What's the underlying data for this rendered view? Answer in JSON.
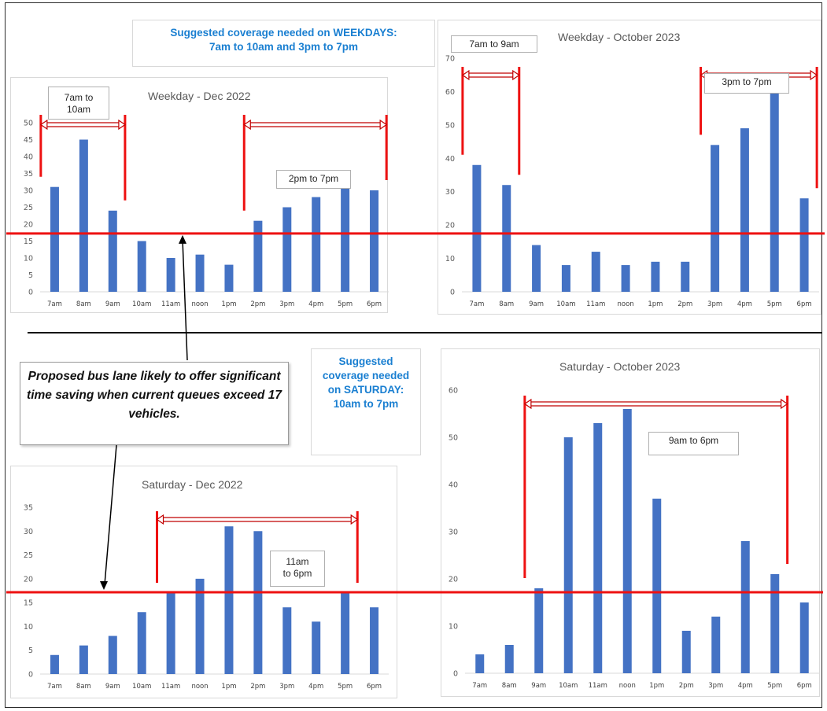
{
  "weekday_note": "Suggested coverage needed on WEEKDAYS:\n7am to 10am and 3pm to 7pm",
  "saturday_note": "Suggested coverage needed on SATURDAY: 10am to 7pm",
  "bus_lane_note": "Proposed bus lane likely to offer significant time saving when current queues exceed 17 vehicles.",
  "colors": {
    "bar": "#4472c4",
    "threshold": "#ee1111",
    "note_blue": "#1a7fd1"
  },
  "threshold_value": 17,
  "chart_data": [
    {
      "id": "wk22",
      "type": "bar",
      "title": "Weekday - Dec 2022",
      "categories": [
        "7am",
        "8am",
        "9am",
        "10am",
        "11am",
        "noon",
        "1pm",
        "2pm",
        "3pm",
        "4pm",
        "5pm",
        "6pm"
      ],
      "values": [
        31,
        45,
        24,
        15,
        10,
        11,
        8,
        21,
        25,
        28,
        36,
        30
      ],
      "ylim": [
        0,
        50
      ],
      "yticks": [
        0,
        5,
        10,
        15,
        20,
        25,
        30,
        35,
        40,
        45,
        50
      ],
      "annotations": [
        {
          "label": "7am to\n10am",
          "from_index": 0,
          "to_index": 2
        },
        {
          "label": "2pm to 7pm",
          "from_index": 7,
          "to_index": 11
        }
      ]
    },
    {
      "id": "wk23",
      "type": "bar",
      "title": "Weekday - October 2023",
      "categories": [
        "7am",
        "8am",
        "9am",
        "10am",
        "11am",
        "noon",
        "1pm",
        "2pm",
        "3pm",
        "4pm",
        "5pm",
        "6pm"
      ],
      "values": [
        38,
        32,
        14,
        8,
        12,
        8,
        9,
        9,
        44,
        49,
        60,
        28
      ],
      "ylim": [
        0,
        70
      ],
      "yticks": [
        0,
        10,
        20,
        30,
        40,
        50,
        60,
        70
      ],
      "annotations": [
        {
          "label": "7am to 9am",
          "from_index": 0,
          "to_index": 1
        },
        {
          "label": "3pm to 7pm",
          "from_index": 8,
          "to_index": 11
        }
      ]
    },
    {
      "id": "sat22",
      "type": "bar",
      "title": "Saturday - Dec 2022",
      "categories": [
        "7am",
        "8am",
        "9am",
        "10am",
        "11am",
        "noon",
        "1pm",
        "2pm",
        "3pm",
        "4pm",
        "5pm",
        "6pm"
      ],
      "values": [
        4,
        6,
        8,
        13,
        17,
        20,
        31,
        30,
        14,
        11,
        17,
        14
      ],
      "ylim": [
        0,
        35
      ],
      "yticks": [
        0,
        5,
        10,
        15,
        20,
        25,
        30,
        35
      ],
      "annotations": [
        {
          "label": "11am\nto 6pm",
          "from_index": 4,
          "to_index": 10
        }
      ]
    },
    {
      "id": "sat23",
      "type": "bar",
      "title": "Saturday - October 2023",
      "categories": [
        "7am",
        "8am",
        "9am",
        "10am",
        "11am",
        "noon",
        "1pm",
        "2pm",
        "3pm",
        "4pm",
        "5pm",
        "6pm"
      ],
      "values": [
        4,
        6,
        18,
        50,
        53,
        56,
        37,
        9,
        12,
        28,
        21,
        15
      ],
      "ylim": [
        0,
        60
      ],
      "yticks": [
        0,
        10,
        20,
        30,
        40,
        50,
        60
      ],
      "annotations": [
        {
          "label": "9am to 6pm",
          "from_index": 2,
          "to_index": 10
        }
      ]
    }
  ]
}
